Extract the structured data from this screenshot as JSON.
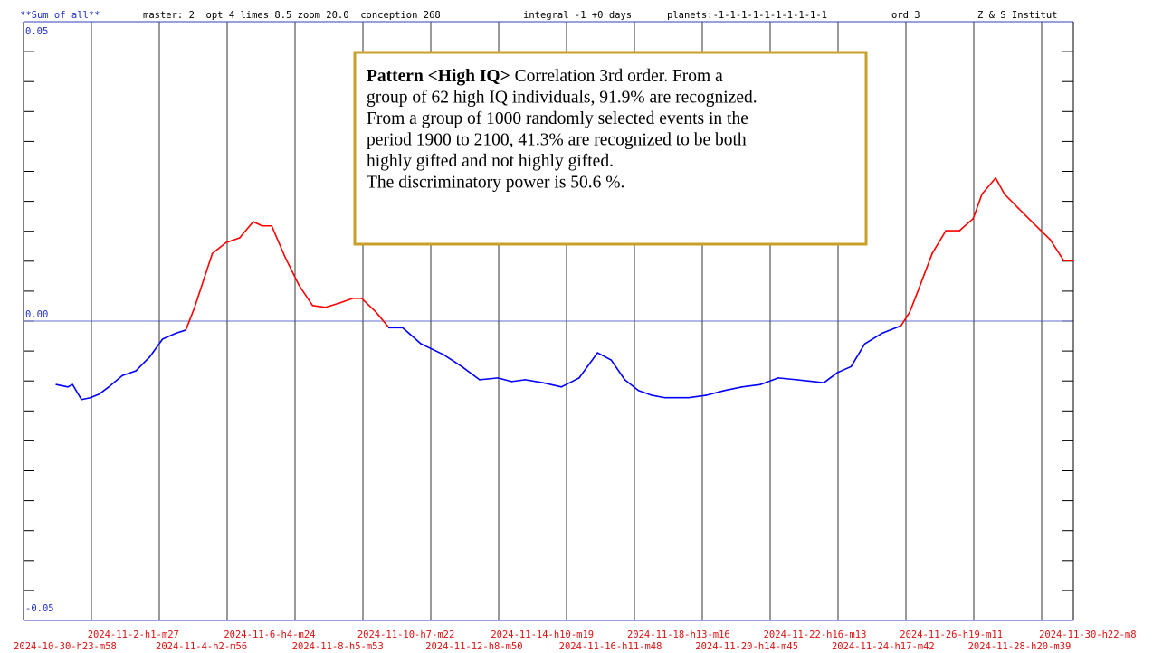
{
  "chart_data": {
    "type": "line",
    "header": [
      "**Sum of all**",
      "master: 2  opt 4 limes 8.5 zoom 20.0  conception 268",
      "integral -1 +0 days",
      "planets:-1-1-1-1-1-1-1-1-1-1",
      "ord 3",
      "Z & S Institut"
    ],
    "annotation": {
      "title": "Pattern <High IQ>",
      "lines": [
        " Correlation 3rd order. From a",
        "group of 62 high IQ individuals, 91.9% are recognized.",
        "From a group of 1000 randomly selected events in the",
        "period 1900 to 2100, 41.3% are recognized to be both",
        "highly gifted and not highly gifted.",
        "The discriminatory power is 50.6 %."
      ]
    },
    "xlim": [
      -0.61,
      14.79
    ],
    "xticks": [
      {
        "value": 0,
        "label": "2024-10-30-h23-m58"
      },
      {
        "value": 1,
        "label": "2024-11-2-h1-m27"
      },
      {
        "value": 2,
        "label": "2024-11-4-h2-m56"
      },
      {
        "value": 3,
        "label": "2024-11-6-h4-m24"
      },
      {
        "value": 4,
        "label": "2024-11-8-h5-m53"
      },
      {
        "value": 5,
        "label": "2024-11-10-h7-m22"
      },
      {
        "value": 6,
        "label": "2024-11-12-h8-m50"
      },
      {
        "value": 7,
        "label": "2024-11-14-h10-m19"
      },
      {
        "value": 8,
        "label": "2024-11-16-h11-m48"
      },
      {
        "value": 9,
        "label": "2024-11-18-h13-m16"
      },
      {
        "value": 10,
        "label": "2024-11-20-h14-m45"
      },
      {
        "value": 11,
        "label": "2024-11-22-h16-m13"
      },
      {
        "value": 12,
        "label": "2024-11-24-h17-m42"
      },
      {
        "value": 13,
        "label": "2024-11-26-h19-m11"
      },
      {
        "value": 14,
        "label": "2024-11-28-h20-m39"
      },
      {
        "value": 15,
        "label": "2024-11-30-h22-m8"
      }
    ],
    "ylim": [
      -0.05,
      0.05
    ],
    "yticks": [
      {
        "value": 0.05,
        "label": "0.05"
      },
      {
        "value": 0,
        "label": "0.00"
      },
      {
        "value": -0.05,
        "label": "-0.05"
      }
    ],
    "color_above": "#ff0000",
    "color_below": "#0000ff",
    "series": [
      {
        "x": [
          -0.13,
          0.04,
          0.11,
          0.24,
          0.37,
          0.5,
          0.64,
          0.84,
          1.04,
          1.24,
          1.43,
          1.63,
          1.77,
          1.9,
          2.03,
          2.16,
          2.36,
          2.56,
          2.76,
          2.89,
          3.03,
          3.23,
          3.43,
          3.63,
          3.82,
          4.02,
          4.22,
          4.35,
          4.56,
          4.75,
          4.95,
          5.22,
          5.55,
          5.82,
          6.08,
          6.35,
          6.55,
          6.75,
          7.01,
          7.28,
          7.54,
          7.81,
          8.01,
          8.21,
          8.41,
          8.61,
          8.8,
          9.14,
          9.4,
          9.67,
          9.93,
          10.2,
          10.46,
          10.73,
          11.13,
          11.33,
          11.53,
          11.73,
          11.99,
          12.26,
          12.39,
          12.52,
          12.72,
          12.92,
          13.12,
          13.32,
          13.45,
          13.65,
          13.78,
          13.98,
          14.18,
          14.45,
          14.65,
          14.79
        ],
        "values": [
          -0.0106,
          -0.011,
          -0.0106,
          -0.0131,
          -0.0128,
          -0.0122,
          -0.011,
          -0.0091,
          -0.0083,
          -0.006,
          -0.003,
          -0.002,
          -0.0015,
          0.0023,
          0.0068,
          0.0113,
          0.0131,
          0.0139,
          0.0166,
          0.0159,
          0.0159,
          0.0106,
          0.006,
          0.0026,
          0.0023,
          0.003,
          0.0038,
          0.0038,
          0.0015,
          -0.0011,
          -0.0011,
          -0.0038,
          -0.0056,
          -0.0076,
          -0.0098,
          -0.0095,
          -0.0101,
          -0.0098,
          -0.0103,
          -0.011,
          -0.0095,
          -0.0053,
          -0.0065,
          -0.0098,
          -0.0116,
          -0.0124,
          -0.0128,
          -0.0128,
          -0.0124,
          -0.0116,
          -0.011,
          -0.0106,
          -0.0095,
          -0.0098,
          -0.0103,
          -0.0086,
          -0.0076,
          -0.0038,
          -0.002,
          -0.0008,
          0.0015,
          0.0053,
          0.0113,
          0.0151,
          0.0151,
          0.0171,
          0.0212,
          0.0239,
          0.0212,
          0.0189,
          0.0166,
          0.0136,
          0.0101,
          0.0101
        ]
      }
    ]
  }
}
